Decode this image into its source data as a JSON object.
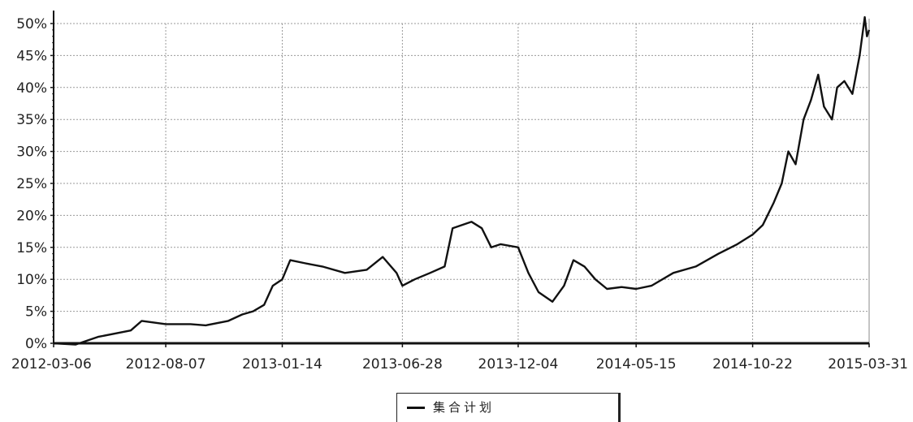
{
  "chart_data": {
    "type": "line",
    "title": "",
    "xlabel": "",
    "ylabel": "",
    "x_ticks": [
      "2012-03-06",
      "2012-08-07",
      "2013-01-14",
      "2013-06-28",
      "2013-12-04",
      "2014-05-15",
      "2014-10-22",
      "2015-03-31"
    ],
    "y_ticks": [
      "0%",
      "5%",
      "10%",
      "15%",
      "20%",
      "25%",
      "30%",
      "35%",
      "40%",
      "45%",
      "50%"
    ],
    "ylim": [
      0,
      50
    ],
    "xlim": [
      "2012-03-06",
      "2015-03-31"
    ],
    "grid": true,
    "legend_position": "bottom-center",
    "series": [
      {
        "name": "集合计划",
        "color": "#111111",
        "points": [
          [
            "2012-03-06",
            0.0
          ],
          [
            "2012-04-05",
            -0.2
          ],
          [
            "2012-05-06",
            1.0
          ],
          [
            "2012-06-20",
            2.0
          ],
          [
            "2012-07-05",
            3.5
          ],
          [
            "2012-08-07",
            3.0
          ],
          [
            "2012-09-10",
            3.0
          ],
          [
            "2012-10-01",
            2.8
          ],
          [
            "2012-11-01",
            3.5
          ],
          [
            "2012-11-20",
            4.5
          ],
          [
            "2012-12-05",
            5.0
          ],
          [
            "2012-12-20",
            6.0
          ],
          [
            "2013-01-01",
            9.0
          ],
          [
            "2013-01-14",
            10.0
          ],
          [
            "2013-01-25",
            13.0
          ],
          [
            "2013-02-15",
            12.5
          ],
          [
            "2013-03-10",
            12.0
          ],
          [
            "2013-04-10",
            11.0
          ],
          [
            "2013-05-10",
            11.5
          ],
          [
            "2013-06-01",
            13.5
          ],
          [
            "2013-06-20",
            11.0
          ],
          [
            "2013-06-28",
            9.0
          ],
          [
            "2013-07-15",
            10.0
          ],
          [
            "2013-08-05",
            11.0
          ],
          [
            "2013-08-25",
            12.0
          ],
          [
            "2013-09-05",
            18.0
          ],
          [
            "2013-10-01",
            19.0
          ],
          [
            "2013-10-15",
            18.0
          ],
          [
            "2013-10-28",
            15.0
          ],
          [
            "2013-11-10",
            15.5
          ],
          [
            "2013-12-04",
            15.0
          ],
          [
            "2013-12-18",
            11.0
          ],
          [
            "2014-01-01",
            8.0
          ],
          [
            "2014-01-20",
            6.5
          ],
          [
            "2014-02-05",
            9.0
          ],
          [
            "2014-02-18",
            13.0
          ],
          [
            "2014-03-05",
            12.0
          ],
          [
            "2014-03-20",
            10.0
          ],
          [
            "2014-04-05",
            8.5
          ],
          [
            "2014-04-25",
            8.8
          ],
          [
            "2014-05-15",
            8.5
          ],
          [
            "2014-06-05",
            9.0
          ],
          [
            "2014-07-05",
            11.0
          ],
          [
            "2014-08-05",
            12.0
          ],
          [
            "2014-09-05",
            14.0
          ],
          [
            "2014-10-01",
            15.5
          ],
          [
            "2014-10-22",
            17.0
          ],
          [
            "2014-11-05",
            18.5
          ],
          [
            "2014-11-20",
            22.0
          ],
          [
            "2014-12-01",
            25.0
          ],
          [
            "2014-12-10",
            30.0
          ],
          [
            "2014-12-20",
            28.0
          ],
          [
            "2014-12-31",
            35.0
          ],
          [
            "2015-01-10",
            38.0
          ],
          [
            "2015-01-20",
            42.0
          ],
          [
            "2015-01-28",
            37.0
          ],
          [
            "2015-02-08",
            35.0
          ],
          [
            "2015-02-15",
            40.0
          ],
          [
            "2015-02-25",
            41.0
          ],
          [
            "2015-03-08",
            39.0
          ],
          [
            "2015-03-18",
            45.0
          ],
          [
            "2015-03-25",
            51.0
          ],
          [
            "2015-03-28",
            48.0
          ],
          [
            "2015-03-31",
            49.0
          ]
        ]
      }
    ]
  },
  "legend": {
    "label": "集合计划"
  }
}
